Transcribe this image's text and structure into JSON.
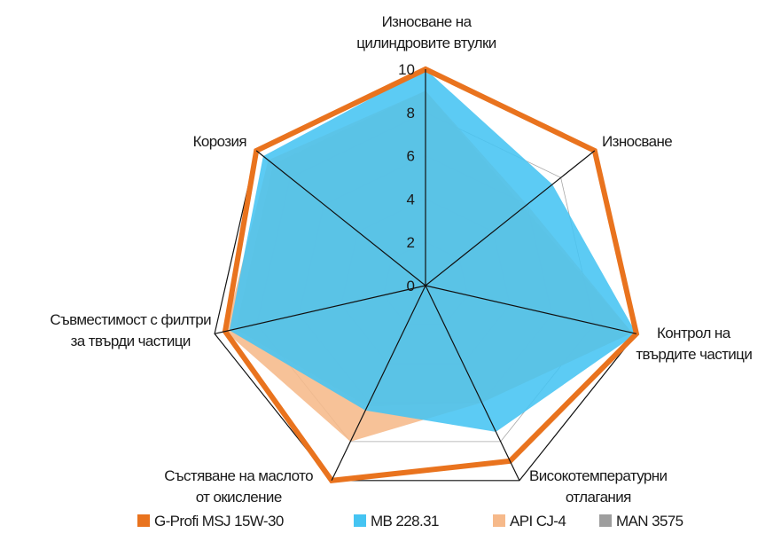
{
  "chart_data": {
    "type": "radar",
    "axes": [
      [
        "Износване на",
        "цилиндровите втулки"
      ],
      [
        "Износване"
      ],
      [
        "Контрол на",
        "твърдите частици"
      ],
      [
        "Високотемпературни",
        "отлагания"
      ],
      [
        "Състяване на маслото",
        "от окисление"
      ],
      [
        "Съвместимост с филтри",
        "за твърди частици"
      ],
      [
        "Корозия"
      ]
    ],
    "ticks": [
      "0",
      "2",
      "4",
      "6",
      "8",
      "10"
    ],
    "range": [
      0,
      10
    ],
    "series": [
      {
        "name": "MAN 3575",
        "color": "#9e9e9e",
        "fill": true,
        "values": [
          9,
          5.8,
          9.8,
          6,
          6.2,
          9,
          9
        ]
      },
      {
        "name": "API CJ-4",
        "color": "#f6b98a",
        "fill": true,
        "values": [
          9,
          6,
          9.8,
          6,
          8,
          9.5,
          9.3
        ]
      },
      {
        "name": "MB 228.31",
        "color": "#45c4f2",
        "fill": true,
        "values": [
          10,
          7.5,
          10,
          7.5,
          6.4,
          9.3,
          9.6
        ]
      },
      {
        "name": "G-Profi MSJ 15W-30",
        "color": "#e9731e",
        "fill": false,
        "values": [
          10,
          10,
          10,
          9,
          10,
          9.5,
          10
        ]
      }
    ],
    "legend_order": [
      "G-Profi MSJ 15W-30",
      "MB 228.31",
      "API CJ-4",
      "MAN 3575"
    ],
    "legend_position": "bottom",
    "grid": true
  }
}
